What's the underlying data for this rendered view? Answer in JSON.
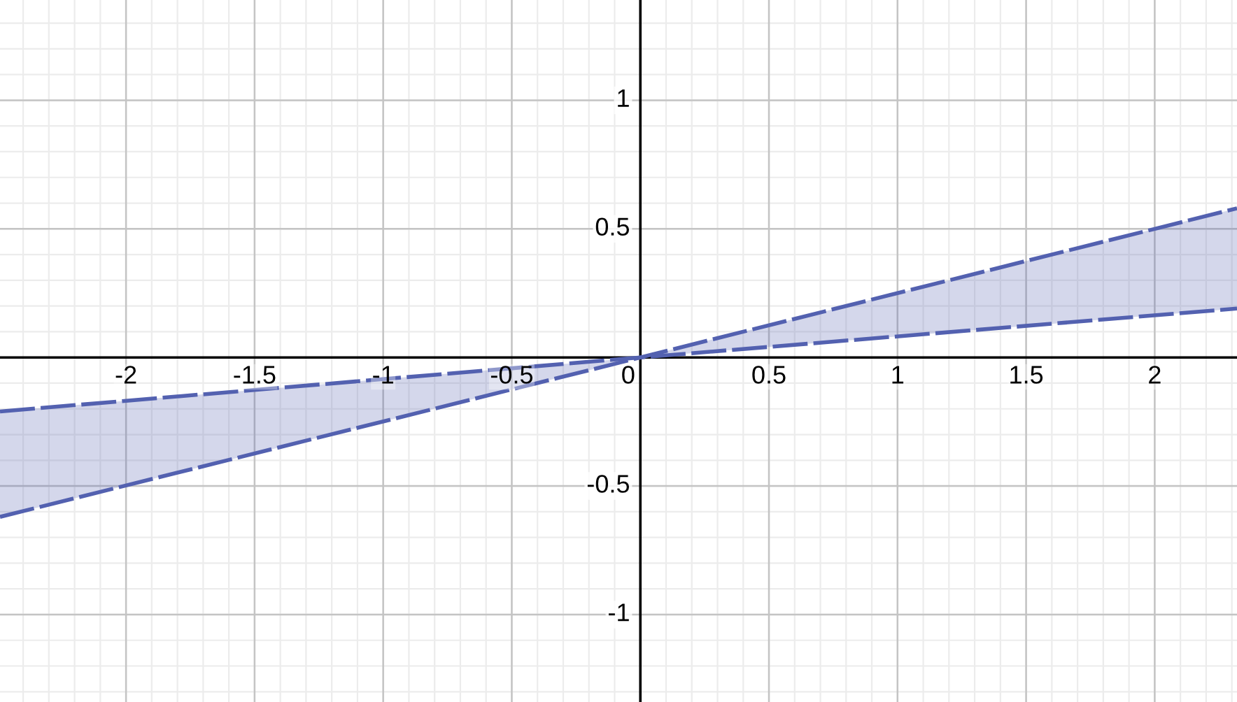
{
  "chart_data": {
    "type": "line",
    "x": [
      -2.49,
      0,
      2.32
    ],
    "series": [
      {
        "color": "#5361b0",
        "values": [
          -0.62,
          0,
          0.58
        ],
        "lower": [
          -0.62,
          0,
          0.19
        ],
        "upper": [
          -0.21,
          0,
          0.58
        ]
      },
      {
        "color": "#5361b0",
        "values": [
          -0.21,
          0,
          0.19
        ]
      }
    ],
    "xlim": [
      -2.49,
      2.32
    ],
    "ylim": [
      -1.34,
      1.39
    ],
    "xticks": [
      -2,
      -1.5,
      -1,
      -0.5,
      0,
      0.5,
      1,
      1.5,
      2
    ],
    "yticks": [
      -1,
      -0.5,
      {
        "value": 0,
        "label": null
      },
      0.5,
      1
    ],
    "grid": true,
    "line_style": "dashed"
  }
}
